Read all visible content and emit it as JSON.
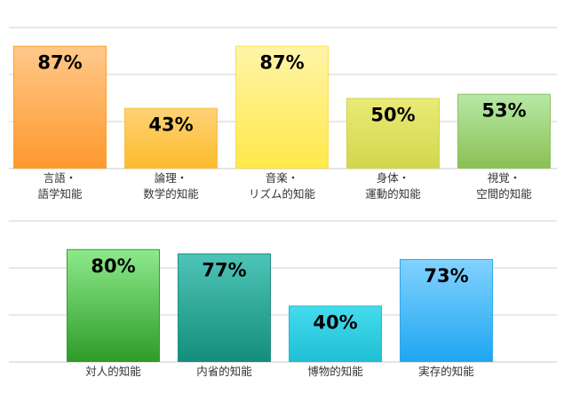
{
  "chart_data": [
    {
      "type": "bar",
      "categories": [
        [
          "言語・",
          "語学知能"
        ],
        [
          "論理・",
          "数学的知能"
        ],
        [
          "音楽・",
          "リズム的知能"
        ],
        [
          "身体・",
          "運動的知能"
        ],
        [
          "視覚・",
          "空間的知能"
        ]
      ],
      "values": [
        87,
        43,
        87,
        50,
        53
      ],
      "value_labels": [
        "87%",
        "43%",
        "87%",
        "50%",
        "53%"
      ],
      "ylim": [
        0,
        100
      ],
      "grid": true,
      "colors": [
        [
          "#ffc98a",
          "#ff982c",
          "#f7a030"
        ],
        [
          "#ffd276",
          "#fbbb2c",
          "#f6c040"
        ],
        [
          "#fff4a8",
          "#ffe94a",
          "#f8e050"
        ],
        [
          "#eaea76",
          "#d0d84c",
          "#cfd350"
        ],
        [
          "#b6e9a6",
          "#8bc054",
          "#8fc060"
        ]
      ]
    },
    {
      "type": "bar",
      "categories": [
        [
          "対人的知能"
        ],
        [
          "内省的知能"
        ],
        [
          "博物的知能"
        ],
        [
          "実存的知能"
        ]
      ],
      "values": [
        80,
        77,
        40,
        73
      ],
      "value_labels": [
        "80%",
        "77%",
        "40%",
        "73%"
      ],
      "ylim": [
        0,
        100
      ],
      "grid": true,
      "colors": [
        [
          "#8ee98c",
          "#2e9c28",
          "#3a9a30"
        ],
        [
          "#4ec4b8",
          "#148e7c",
          "#1f8e80"
        ],
        [
          "#44dcec",
          "#1fbfd6",
          "#28b8d0"
        ],
        [
          "#82d2ff",
          "#1fa6f0",
          "#30a8e8"
        ]
      ]
    }
  ]
}
